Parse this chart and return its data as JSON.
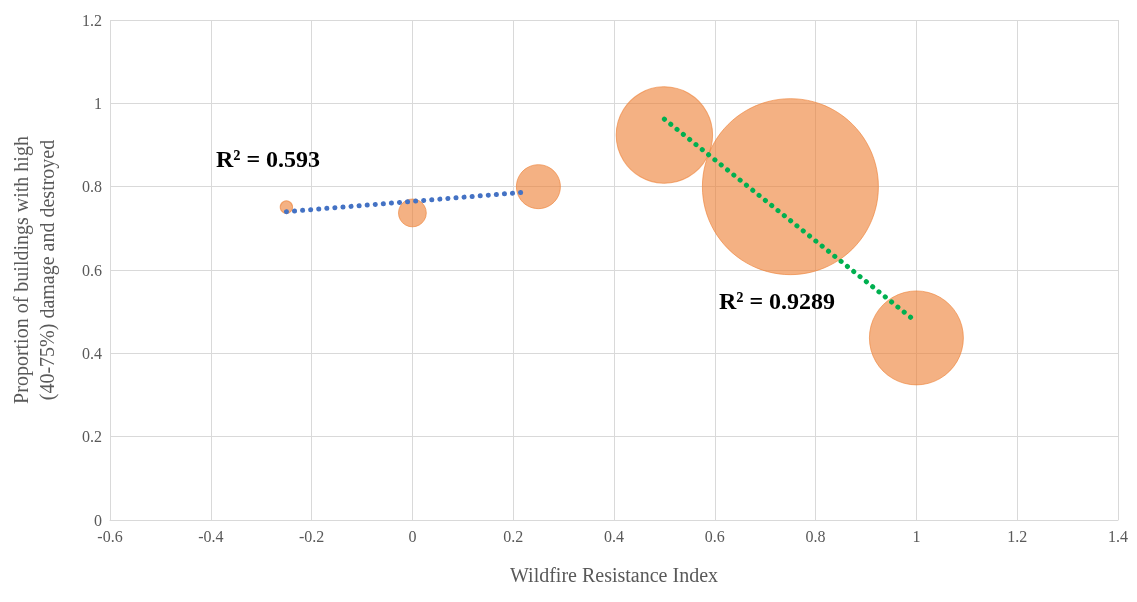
{
  "chart_data": {
    "type": "bubble",
    "xlabel": "Wildfire Resistance Index",
    "ylabel": "Proportion of buildings with high\n(40-75%) damage and destroyed",
    "series": [
      {
        "color": "#ed7d31",
        "x": [
          -0.25,
          0,
          0.25,
          0.5,
          0.75,
          1
        ],
        "values": [
          0.751,
          0.737,
          0.8,
          0.924,
          0.8,
          0.437
        ],
        "sizes": [
          0.005,
          0.025,
          0.0625,
          0.3,
          1,
          0.285
        ]
      },
      {
        "type": "line",
        "color": "#4472c4",
        "x": [
          -0.25,
          0.225
        ],
        "values": [
          0.74,
          0.787
        ],
        "line_style": "dotted"
      },
      {
        "type": "line",
        "color": "#00b050",
        "x": [
          0.5,
          0.99
        ],
        "values": [
          0.962,
          0.485
        ],
        "line_style": "dotted"
      }
    ],
    "annotations": [
      "R² = 0.593",
      "R² = 0.9289"
    ],
    "xlim": [
      -0.6,
      1.4
    ],
    "xticks": [
      -0.6,
      -0.4,
      -0.2,
      0,
      0.2,
      0.4,
      0.6,
      0.8,
      1,
      1.2,
      1.4
    ],
    "ylim": [
      0,
      1.2
    ],
    "yticks": [
      0,
      0.2,
      0.4,
      0.6,
      0.8,
      1,
      1.2
    ],
    "grid": true
  }
}
